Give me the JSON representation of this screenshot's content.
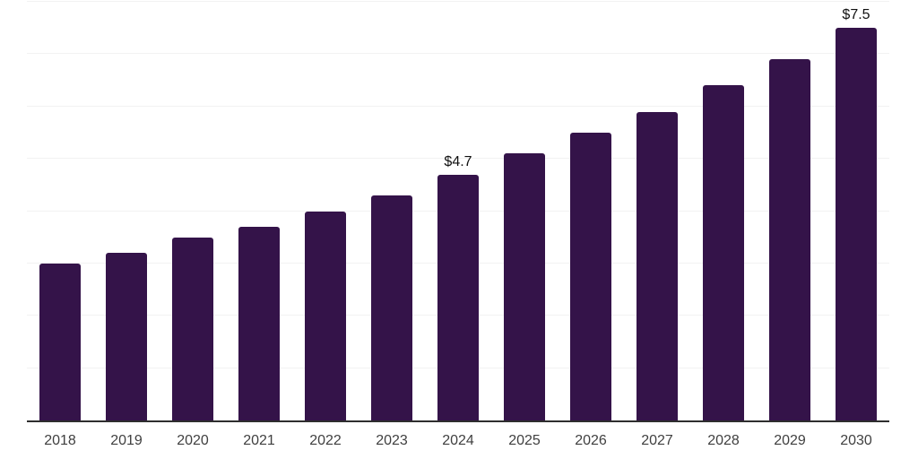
{
  "chart_data": {
    "type": "bar",
    "title": "",
    "xlabel": "",
    "ylabel": "",
    "categories": [
      "2018",
      "2019",
      "2020",
      "2021",
      "2022",
      "2023",
      "2024",
      "2025",
      "2026",
      "2027",
      "2028",
      "2029",
      "2030"
    ],
    "values": [
      3.0,
      3.2,
      3.5,
      3.7,
      4.0,
      4.3,
      4.7,
      5.1,
      5.5,
      5.9,
      6.4,
      6.9,
      7.5
    ],
    "data_labels": {
      "2024": "$4.7",
      "2030": "$7.5"
    },
    "ylim": [
      0,
      8
    ],
    "gridline_step": 1,
    "grid": "horizontal",
    "legend": "none",
    "colors": {
      "bar": "#341349",
      "grid": "#f2f2f2",
      "axis": "#2e2e2e",
      "tick_label": "#404040",
      "data_label": "#111111"
    }
  }
}
